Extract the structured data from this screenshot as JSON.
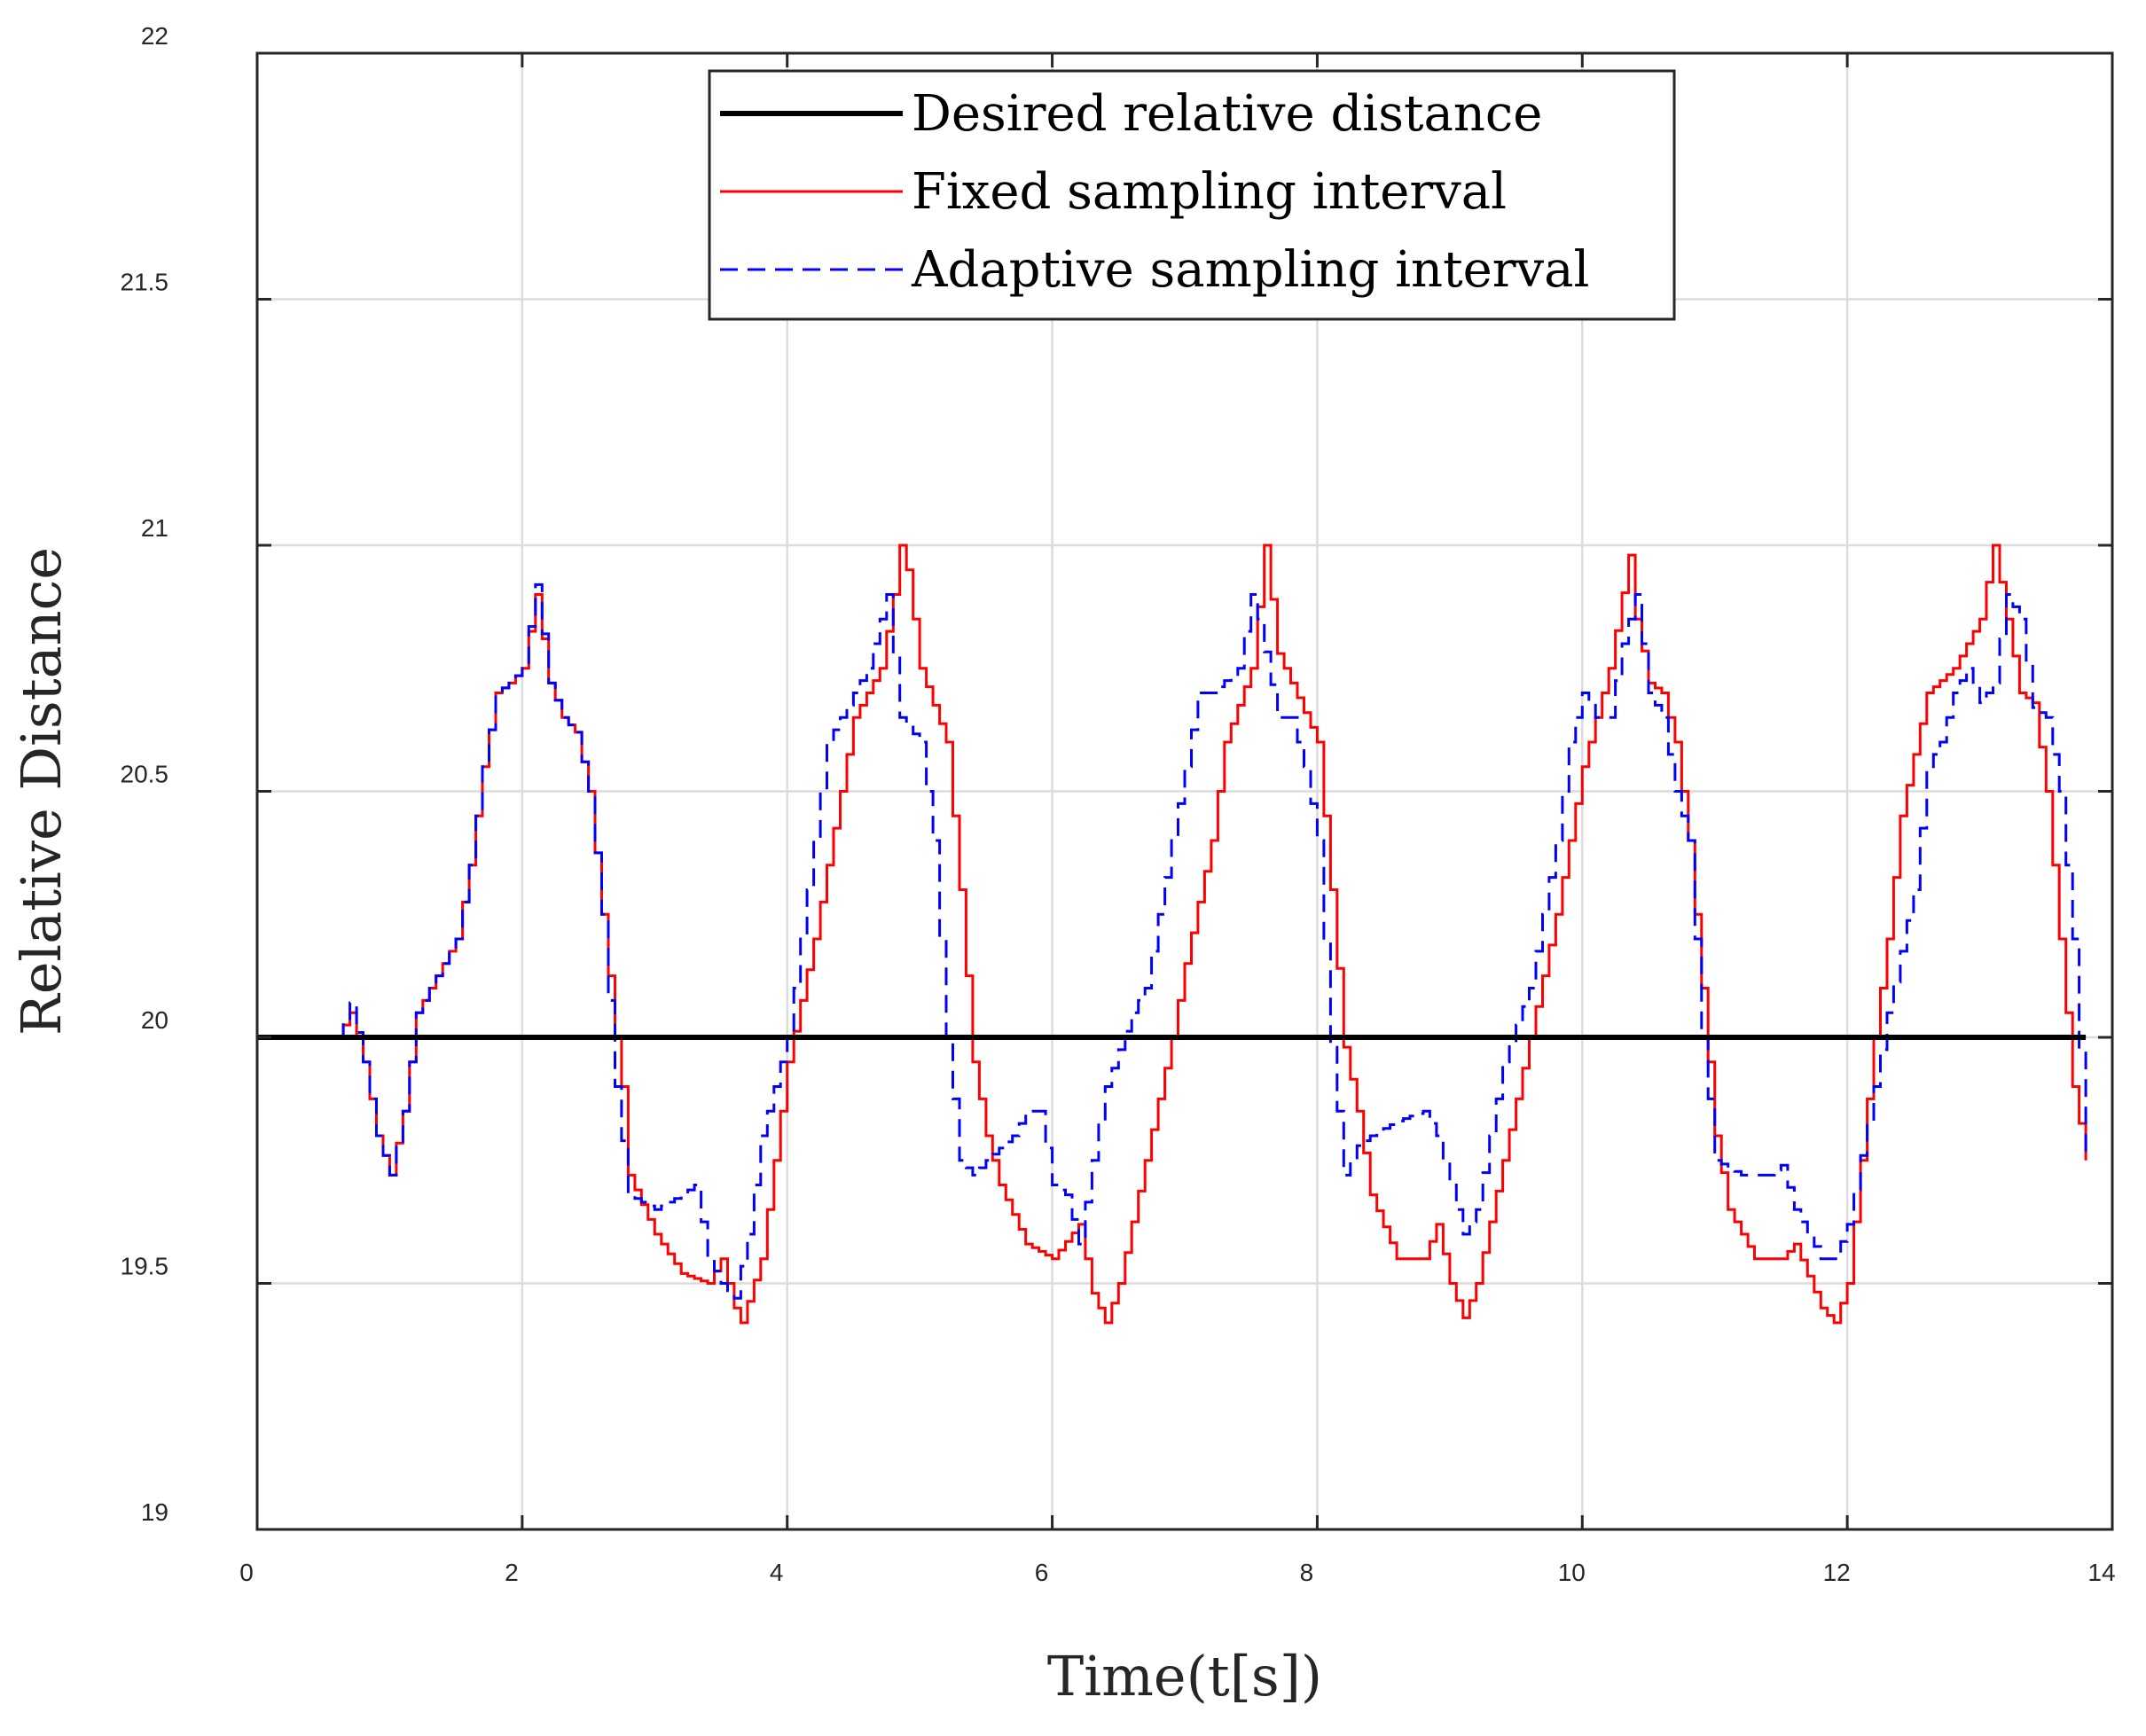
{
  "chart_data": {
    "type": "line",
    "title": "",
    "xlabel": "Time(t[s])",
    "ylabel": "Relative Distance",
    "xlim": [
      0,
      14
    ],
    "ylim": [
      19,
      22
    ],
    "xticks": [
      "0",
      "2",
      "4",
      "6",
      "8",
      "10",
      "12",
      "14"
    ],
    "yticks": [
      "19",
      "19.5",
      "20",
      "20.5",
      "21",
      "21.5",
      "22"
    ],
    "grid": true,
    "legend_position": "top-center",
    "series": [
      {
        "name": "Desired relative distance",
        "color": "#000000",
        "style": "solid-thick",
        "x": [
          0.0,
          13.8
        ],
        "y": [
          20.0,
          20.0
        ]
      },
      {
        "name": "Fixed sampling interval",
        "color": "#ff0000",
        "style": "solid",
        "x": [
          0.0,
          0.4,
          0.6,
          0.7,
          0.8,
          0.9,
          1.0,
          1.1,
          1.2,
          1.4,
          1.5,
          1.6,
          1.7,
          1.8,
          1.9,
          2.0,
          2.1,
          2.2,
          2.3,
          2.4,
          2.5,
          2.6,
          2.7,
          2.75,
          2.8,
          3.0,
          3.2,
          3.4,
          3.5,
          3.6,
          3.65,
          3.8,
          3.9,
          4.0,
          4.2,
          4.4,
          4.5,
          4.7,
          4.8,
          4.85,
          4.9,
          5.0,
          5.2,
          5.3,
          5.4,
          5.5,
          5.6,
          5.8,
          6.0,
          6.2,
          6.3,
          6.4,
          6.5,
          6.7,
          6.9,
          7.0,
          7.2,
          7.3,
          7.5,
          7.6,
          7.7,
          7.8,
          8.0,
          8.1,
          8.2,
          8.3,
          8.4,
          8.6,
          8.8,
          8.9,
          9.0,
          9.1,
          9.2,
          9.4,
          9.6,
          9.8,
          10.0,
          10.2,
          10.35,
          10.4,
          10.5,
          10.6,
          10.7,
          10.8,
          10.9,
          11.0,
          11.1,
          11.3,
          11.5,
          11.6,
          11.8,
          11.9,
          12.0,
          12.1,
          12.2,
          12.3,
          12.4,
          12.6,
          12.8,
          13.0,
          13.1,
          13.2,
          13.3,
          13.4,
          13.5,
          13.6,
          13.7,
          13.8
        ],
        "y": [
          20.0,
          20.0,
          20.0,
          20.05,
          19.95,
          19.8,
          19.72,
          19.85,
          20.05,
          20.15,
          20.2,
          20.35,
          20.55,
          20.7,
          20.72,
          20.75,
          20.9,
          20.72,
          20.65,
          20.62,
          20.5,
          20.25,
          20.0,
          19.9,
          19.72,
          19.6,
          19.52,
          19.5,
          19.55,
          19.45,
          19.42,
          19.55,
          19.75,
          19.95,
          20.2,
          20.5,
          20.65,
          20.75,
          20.9,
          21.0,
          20.95,
          20.75,
          20.6,
          20.3,
          19.95,
          19.8,
          19.7,
          19.58,
          19.55,
          19.62,
          19.48,
          19.42,
          19.5,
          19.75,
          20.0,
          20.15,
          20.4,
          20.6,
          20.75,
          21.0,
          20.78,
          20.72,
          20.6,
          20.3,
          19.98,
          19.85,
          19.68,
          19.55,
          19.55,
          19.62,
          19.5,
          19.43,
          19.5,
          19.75,
          20.0,
          20.25,
          20.55,
          20.75,
          20.98,
          20.85,
          20.72,
          20.7,
          20.6,
          20.4,
          20.1,
          19.8,
          19.65,
          19.55,
          19.55,
          19.58,
          19.45,
          19.42,
          19.5,
          19.75,
          20.0,
          20.2,
          20.45,
          20.7,
          20.75,
          20.85,
          21.0,
          20.85,
          20.7,
          20.68,
          20.5,
          20.2,
          19.9,
          19.75
        ]
      },
      {
        "name": "Adaptive sampling interval",
        "color": "#0000ff",
        "style": "dashed",
        "x": [
          0.0,
          0.6,
          0.7,
          0.8,
          0.9,
          1.0,
          1.1,
          1.2,
          1.4,
          1.5,
          1.6,
          1.7,
          1.8,
          1.9,
          2.0,
          2.1,
          2.2,
          2.3,
          2.4,
          2.5,
          2.6,
          2.7,
          2.8,
          3.0,
          3.2,
          3.3,
          3.4,
          3.5,
          3.6,
          3.7,
          3.8,
          4.0,
          4.2,
          4.3,
          4.5,
          4.6,
          4.7,
          4.75,
          4.85,
          5.0,
          5.1,
          5.2,
          5.3,
          5.4,
          5.5,
          5.7,
          5.8,
          5.9,
          6.0,
          6.1,
          6.2,
          6.3,
          6.4,
          6.6,
          6.7,
          6.9,
          7.0,
          7.1,
          7.2,
          7.4,
          7.5,
          7.55,
          7.7,
          7.8,
          7.9,
          8.0,
          8.1,
          8.2,
          8.3,
          8.4,
          8.6,
          8.8,
          8.9,
          9.0,
          9.1,
          9.2,
          9.4,
          9.6,
          9.8,
          9.9,
          10.0,
          10.1,
          10.2,
          10.3,
          10.4,
          10.5,
          10.6,
          10.7,
          10.8,
          10.9,
          11.0,
          11.2,
          11.4,
          11.5,
          11.6,
          11.7,
          11.8,
          11.9,
          12.0,
          12.2,
          12.3,
          12.5,
          12.6,
          12.7,
          12.8,
          12.9,
          13.0,
          13.1,
          13.2,
          13.3,
          13.4,
          13.5,
          13.6,
          13.7,
          13.8
        ],
        "y": [
          20.0,
          20.0,
          20.07,
          19.95,
          19.8,
          19.72,
          19.85,
          20.05,
          20.15,
          20.2,
          20.35,
          20.55,
          20.7,
          20.72,
          20.75,
          20.92,
          20.72,
          20.65,
          20.62,
          20.5,
          20.25,
          19.9,
          19.68,
          19.65,
          19.68,
          19.7,
          19.55,
          19.5,
          19.47,
          19.6,
          19.8,
          20.0,
          20.4,
          20.6,
          20.7,
          20.75,
          20.85,
          20.9,
          20.65,
          20.6,
          20.4,
          20.0,
          19.75,
          19.72,
          19.75,
          19.8,
          19.85,
          19.85,
          19.7,
          19.68,
          19.58,
          19.75,
          19.9,
          20.05,
          20.1,
          20.4,
          20.55,
          20.7,
          20.7,
          20.75,
          20.9,
          20.85,
          20.65,
          20.65,
          20.55,
          20.4,
          19.98,
          19.72,
          19.78,
          19.8,
          19.83,
          19.85,
          19.8,
          19.7,
          19.6,
          19.65,
          19.95,
          20.1,
          20.4,
          20.6,
          20.7,
          20.65,
          20.65,
          20.8,
          20.9,
          20.7,
          20.65,
          20.5,
          20.4,
          20.0,
          19.75,
          19.72,
          19.72,
          19.74,
          19.65,
          19.6,
          19.55,
          19.55,
          19.62,
          19.9,
          20.05,
          20.3,
          20.55,
          20.6,
          20.7,
          20.75,
          20.68,
          20.72,
          20.9,
          20.85,
          20.67,
          20.65,
          20.5,
          20.2,
          19.75
        ]
      }
    ]
  }
}
